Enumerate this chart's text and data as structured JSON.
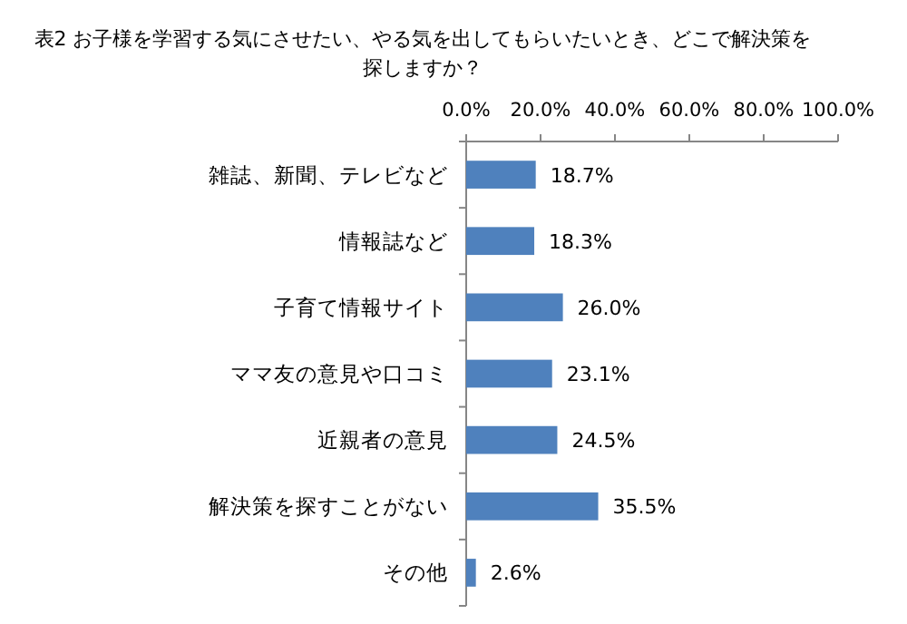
{
  "chart_data": {
    "type": "bar",
    "orientation": "horizontal",
    "title": "表2 お子様を学習する気にさせたい、やる気を出してもらいたいとき、どこで解決策を探しますか？",
    "categories": [
      "雑誌、新聞、テレビなど",
      "情報誌など",
      "子育て情報サイト",
      "ママ友の意見や口コミ",
      "近親者の意見",
      "解決策を探すことがない",
      "その他"
    ],
    "values": [
      18.7,
      18.3,
      26.0,
      23.1,
      24.5,
      35.5,
      2.6
    ],
    "value_labels": [
      "18.7%",
      "18.3%",
      "26.0%",
      "23.1%",
      "24.5%",
      "35.5%",
      "2.6%"
    ],
    "color": "#4f81bd",
    "xlim": [
      0,
      100
    ],
    "xticks": [
      {
        "value": 0,
        "label": "0.0%"
      },
      {
        "value": 20,
        "label": "20.0%"
      },
      {
        "value": 40,
        "label": "40.0%"
      },
      {
        "value": 60,
        "label": "60.0%"
      },
      {
        "value": 80,
        "label": "80.0%"
      },
      {
        "value": 100,
        "label": "100.0%"
      }
    ],
    "grid": false
  }
}
